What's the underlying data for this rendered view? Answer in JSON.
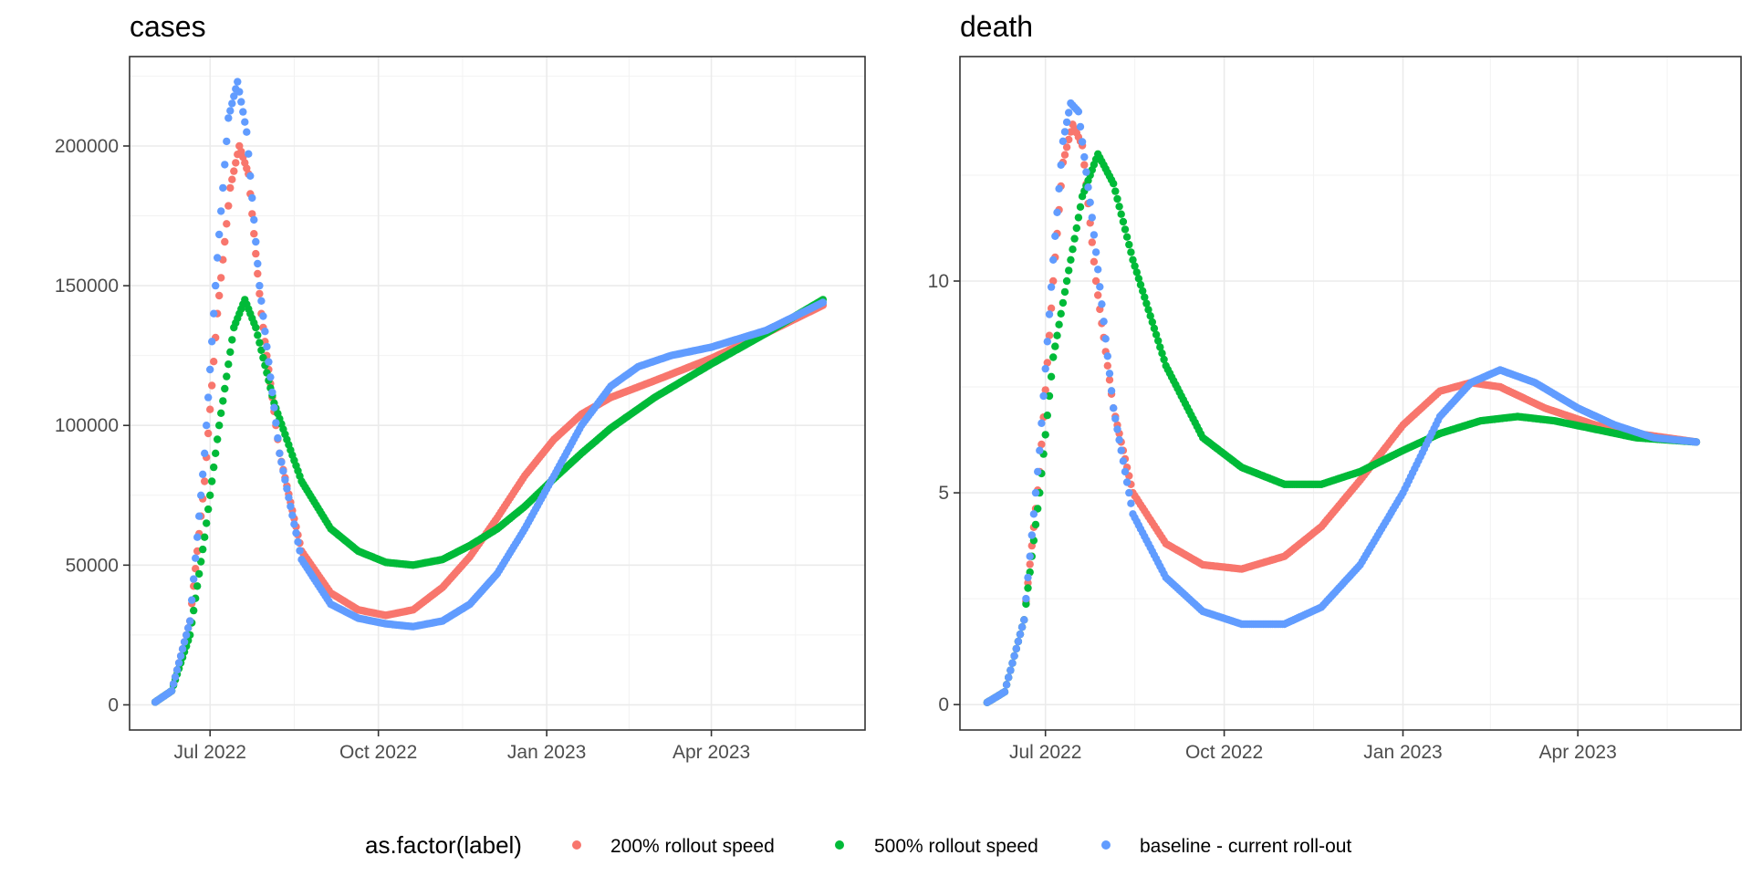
{
  "chart_data": [
    {
      "type": "scatter",
      "title": "cases",
      "xlabel": "",
      "ylabel": "",
      "x_ticks": [
        "Jul 2022",
        "Oct 2022",
        "Jan 2023",
        "Apr 2023"
      ],
      "y_ticks": [
        "0",
        "50000",
        "100000",
        "150000",
        "200000"
      ],
      "ylim": [
        -9000,
        232000
      ],
      "xlim": [
        "2022-05-18",
        "2023-06-24"
      ],
      "grid": true,
      "series": [
        {
          "name": "200% rollout speed",
          "color": "#F8766D",
          "points": [
            [
              "2022-06-01",
              1000
            ],
            [
              "2022-06-10",
              5000
            ],
            [
              "2022-06-20",
              30000
            ],
            [
              "2022-06-28",
              80000
            ],
            [
              "2022-07-05",
              140000
            ],
            [
              "2022-07-12",
              185000
            ],
            [
              "2022-07-17",
              200000
            ],
            [
              "2022-07-22",
              190000
            ],
            [
              "2022-07-29",
              140000
            ],
            [
              "2022-08-08",
              90000
            ],
            [
              "2022-08-20",
              55000
            ],
            [
              "2022-09-05",
              40000
            ],
            [
              "2022-09-20",
              34000
            ],
            [
              "2022-10-05",
              32000
            ],
            [
              "2022-10-20",
              34000
            ],
            [
              "2022-11-05",
              42000
            ],
            [
              "2022-11-20",
              53000
            ],
            [
              "2022-12-05",
              67000
            ],
            [
              "2022-12-20",
              82000
            ],
            [
              "2023-01-05",
              95000
            ],
            [
              "2023-01-20",
              104000
            ],
            [
              "2023-02-05",
              110000
            ],
            [
              "2023-03-01",
              116000
            ],
            [
              "2023-04-01",
              124000
            ],
            [
              "2023-05-01",
              133000
            ],
            [
              "2023-06-01",
              143000
            ]
          ]
        },
        {
          "name": "500% rollout speed",
          "color": "#00BA38",
          "points": [
            [
              "2022-06-01",
              1000
            ],
            [
              "2022-06-10",
              5000
            ],
            [
              "2022-06-20",
              25000
            ],
            [
              "2022-06-28",
              60000
            ],
            [
              "2022-07-06",
              100000
            ],
            [
              "2022-07-14",
              135000
            ],
            [
              "2022-07-20",
              145000
            ],
            [
              "2022-07-26",
              135000
            ],
            [
              "2022-08-05",
              108000
            ],
            [
              "2022-08-20",
              80000
            ],
            [
              "2022-09-05",
              63000
            ],
            [
              "2022-09-20",
              55000
            ],
            [
              "2022-10-05",
              51000
            ],
            [
              "2022-10-20",
              50000
            ],
            [
              "2022-11-05",
              52000
            ],
            [
              "2022-11-20",
              57000
            ],
            [
              "2022-12-05",
              63000
            ],
            [
              "2022-12-20",
              71000
            ],
            [
              "2023-01-05",
              81000
            ],
            [
              "2023-01-20",
              90000
            ],
            [
              "2023-02-05",
              99000
            ],
            [
              "2023-03-01",
              110000
            ],
            [
              "2023-04-01",
              122000
            ],
            [
              "2023-05-01",
              133000
            ],
            [
              "2023-06-01",
              145000
            ]
          ]
        },
        {
          "name": "baseline - current roll-out",
          "color": "#619CFF",
          "points": [
            [
              "2022-06-01",
              1000
            ],
            [
              "2022-06-10",
              5000
            ],
            [
              "2022-06-20",
              30000
            ],
            [
              "2022-06-28",
              90000
            ],
            [
              "2022-07-05",
              160000
            ],
            [
              "2022-07-11",
              210000
            ],
            [
              "2022-07-16",
              223000
            ],
            [
              "2022-07-21",
              205000
            ],
            [
              "2022-07-28",
              150000
            ],
            [
              "2022-08-08",
              90000
            ],
            [
              "2022-08-20",
              52000
            ],
            [
              "2022-09-05",
              36000
            ],
            [
              "2022-09-20",
              31000
            ],
            [
              "2022-10-05",
              29000
            ],
            [
              "2022-10-20",
              28000
            ],
            [
              "2022-11-05",
              30000
            ],
            [
              "2022-11-20",
              36000
            ],
            [
              "2022-12-05",
              47000
            ],
            [
              "2022-12-20",
              63000
            ],
            [
              "2023-01-05",
              82000
            ],
            [
              "2023-01-20",
              100000
            ],
            [
              "2023-02-05",
              114000
            ],
            [
              "2023-02-20",
              121000
            ],
            [
              "2023-03-10",
              125000
            ],
            [
              "2023-04-01",
              128000
            ],
            [
              "2023-05-01",
              134000
            ],
            [
              "2023-06-01",
              144000
            ]
          ]
        }
      ]
    },
    {
      "type": "scatter",
      "title": "death",
      "xlabel": "",
      "ylabel": "",
      "x_ticks": [
        "Jul 2022",
        "Oct 2022",
        "Jan 2023",
        "Apr 2023"
      ],
      "y_ticks": [
        "0",
        "5",
        "10"
      ],
      "ylim": [
        -0.6,
        15.3
      ],
      "xlim": [
        "2022-05-18",
        "2023-06-24"
      ],
      "grid": true,
      "series": [
        {
          "name": "200% rollout speed",
          "color": "#F8766D",
          "points": [
            [
              "2022-06-01",
              0.05
            ],
            [
              "2022-06-10",
              0.3
            ],
            [
              "2022-06-20",
              2.0
            ],
            [
              "2022-06-28",
              5.5
            ],
            [
              "2022-07-05",
              10.0
            ],
            [
              "2022-07-10",
              12.8
            ],
            [
              "2022-07-15",
              13.7
            ],
            [
              "2022-07-20",
              13.2
            ],
            [
              "2022-07-27",
              10.0
            ],
            [
              "2022-08-05",
              7.0
            ],
            [
              "2022-08-15",
              5.0
            ],
            [
              "2022-09-01",
              3.8
            ],
            [
              "2022-09-20",
              3.3
            ],
            [
              "2022-10-10",
              3.2
            ],
            [
              "2022-11-01",
              3.5
            ],
            [
              "2022-11-20",
              4.2
            ],
            [
              "2022-12-10",
              5.3
            ],
            [
              "2023-01-01",
              6.6
            ],
            [
              "2023-01-20",
              7.4
            ],
            [
              "2023-02-05",
              7.6
            ],
            [
              "2023-02-20",
              7.5
            ],
            [
              "2023-03-15",
              7.0
            ],
            [
              "2023-04-10",
              6.6
            ],
            [
              "2023-05-01",
              6.4
            ],
            [
              "2023-06-01",
              6.2
            ]
          ]
        },
        {
          "name": "500% rollout speed",
          "color": "#00BA38",
          "points": [
            [
              "2022-06-01",
              0.05
            ],
            [
              "2022-06-10",
              0.3
            ],
            [
              "2022-06-20",
              2.0
            ],
            [
              "2022-06-28",
              5.0
            ],
            [
              "2022-07-05",
              8.2
            ],
            [
              "2022-07-12",
              10.0
            ],
            [
              "2022-07-20",
              12.0
            ],
            [
              "2022-07-28",
              13.0
            ],
            [
              "2022-08-05",
              12.3
            ],
            [
              "2022-08-15",
              10.5
            ],
            [
              "2022-09-01",
              8.0
            ],
            [
              "2022-09-20",
              6.3
            ],
            [
              "2022-10-10",
              5.6
            ],
            [
              "2022-11-01",
              5.2
            ],
            [
              "2022-11-20",
              5.2
            ],
            [
              "2022-12-10",
              5.5
            ],
            [
              "2023-01-01",
              6.0
            ],
            [
              "2023-01-20",
              6.4
            ],
            [
              "2023-02-10",
              6.7
            ],
            [
              "2023-03-01",
              6.8
            ],
            [
              "2023-03-20",
              6.7
            ],
            [
              "2023-04-10",
              6.5
            ],
            [
              "2023-05-01",
              6.3
            ],
            [
              "2023-06-01",
              6.2
            ]
          ]
        },
        {
          "name": "baseline - current roll-out",
          "color": "#619CFF",
          "points": [
            [
              "2022-06-01",
              0.05
            ],
            [
              "2022-06-10",
              0.3
            ],
            [
              "2022-06-20",
              2.0
            ],
            [
              "2022-06-28",
              6.0
            ],
            [
              "2022-07-05",
              10.5
            ],
            [
              "2022-07-10",
              13.3
            ],
            [
              "2022-07-14",
              14.2
            ],
            [
              "2022-07-18",
              14.0
            ],
            [
              "2022-07-25",
              11.5
            ],
            [
              "2022-08-05",
              7.0
            ],
            [
              "2022-08-15",
              4.5
            ],
            [
              "2022-09-01",
              3.0
            ],
            [
              "2022-09-20",
              2.2
            ],
            [
              "2022-10-10",
              1.9
            ],
            [
              "2022-11-01",
              1.9
            ],
            [
              "2022-11-20",
              2.3
            ],
            [
              "2022-12-10",
              3.3
            ],
            [
              "2023-01-01",
              5.0
            ],
            [
              "2023-01-20",
              6.8
            ],
            [
              "2023-02-05",
              7.6
            ],
            [
              "2023-02-20",
              7.9
            ],
            [
              "2023-03-10",
              7.6
            ],
            [
              "2023-04-01",
              7.0
            ],
            [
              "2023-04-20",
              6.6
            ],
            [
              "2023-05-10",
              6.3
            ],
            [
              "2023-06-01",
              6.2
            ]
          ]
        }
      ]
    }
  ],
  "legend": {
    "title": "as.factor(label)",
    "position": "bottom",
    "items": [
      {
        "label": "200% rollout speed",
        "color": "#F8766D"
      },
      {
        "label": "500% rollout speed",
        "color": "#00BA38"
      },
      {
        "label": "baseline - current roll-out",
        "color": "#619CFF"
      }
    ]
  }
}
